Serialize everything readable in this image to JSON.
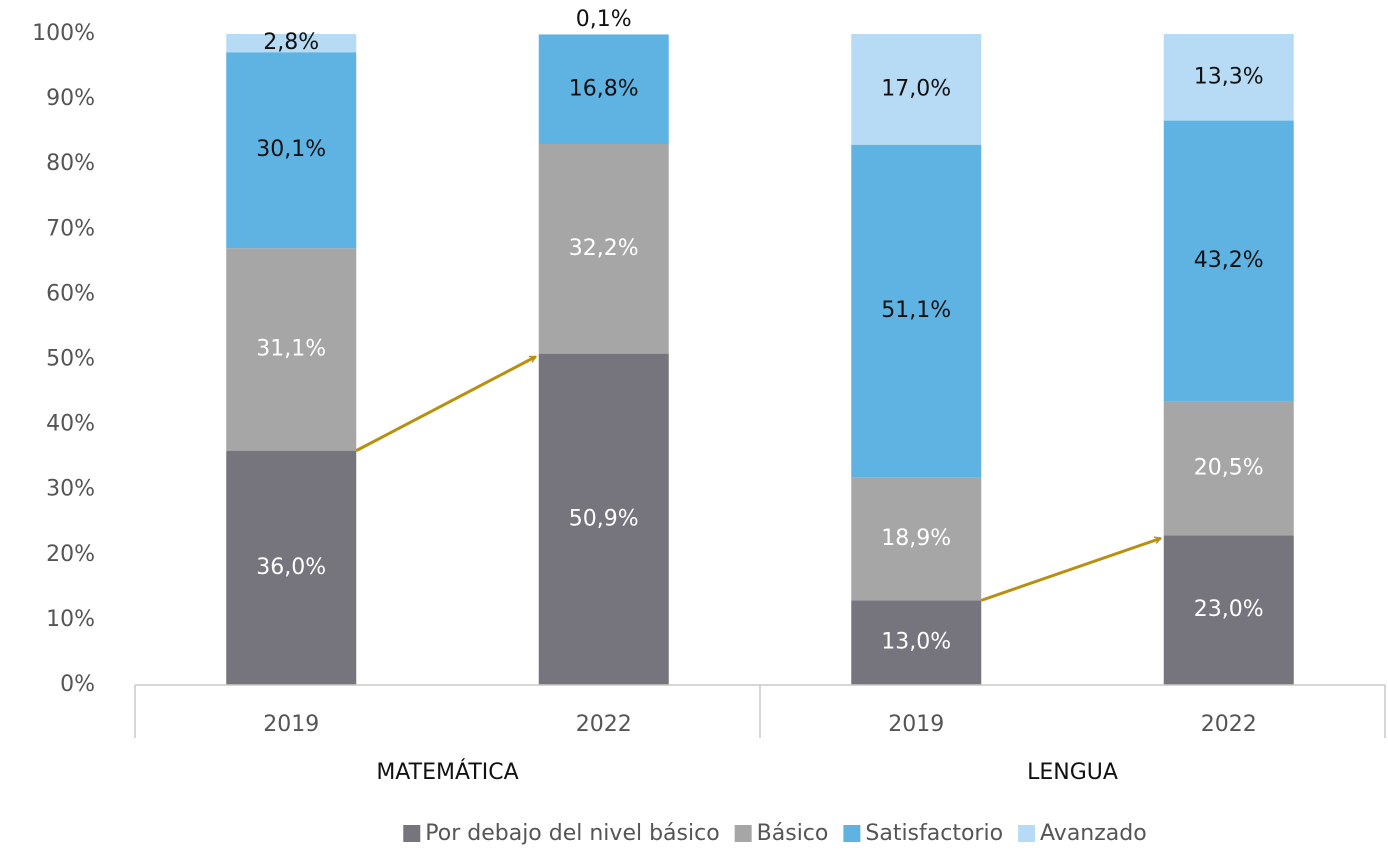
{
  "chart_data": {
    "type": "stacked_bar",
    "categories": [
      "2019",
      "2022",
      "2019",
      "2022"
    ],
    "groups": [
      {
        "label": "MATEMÁTICA",
        "span": 2
      },
      {
        "label": "LENGUA",
        "span": 2
      }
    ],
    "ylim": [
      0,
      100
    ],
    "yticks": [
      {
        "value": 0,
        "label": "0%"
      },
      {
        "value": 10,
        "label": "10%"
      },
      {
        "value": 20,
        "label": "20%"
      },
      {
        "value": 30,
        "label": "30%"
      },
      {
        "value": 40,
        "label": "40%"
      },
      {
        "value": 50,
        "label": "50%"
      },
      {
        "value": 60,
        "label": "60%"
      },
      {
        "value": 70,
        "label": "70%"
      },
      {
        "value": 80,
        "label": "80%"
      },
      {
        "value": 90,
        "label": "90%"
      },
      {
        "value": 100,
        "label": "100%"
      }
    ],
    "grid": false,
    "legend": "bottom",
    "series": [
      {
        "name": "Por debajo del nivel básico",
        "color": "#76757e",
        "values": [
          36.0,
          50.9,
          13.0,
          23.0
        ],
        "value_labels": [
          "36,0%",
          "50,9%",
          "13,0%",
          "23,0%"
        ]
      },
      {
        "name": "Básico",
        "color": "#a6a6a6",
        "values": [
          31.1,
          32.2,
          18.9,
          20.5
        ],
        "value_labels": [
          "31,1%",
          "32,2%",
          "18,9%",
          "20,5%"
        ]
      },
      {
        "name": "Satisfactorio",
        "color": "#5fb3e3",
        "values": [
          30.1,
          16.8,
          51.1,
          43.2
        ],
        "value_labels": [
          "30,1%",
          "16,8%",
          "51,1%",
          "43,2%"
        ]
      },
      {
        "name": "Avanzado",
        "color": "#b7dbf4",
        "values": [
          2.8,
          0.1,
          17.0,
          13.3
        ],
        "value_labels": [
          "2,8%",
          "0,1%",
          "17,0%",
          "13,3%"
        ]
      }
    ]
  }
}
